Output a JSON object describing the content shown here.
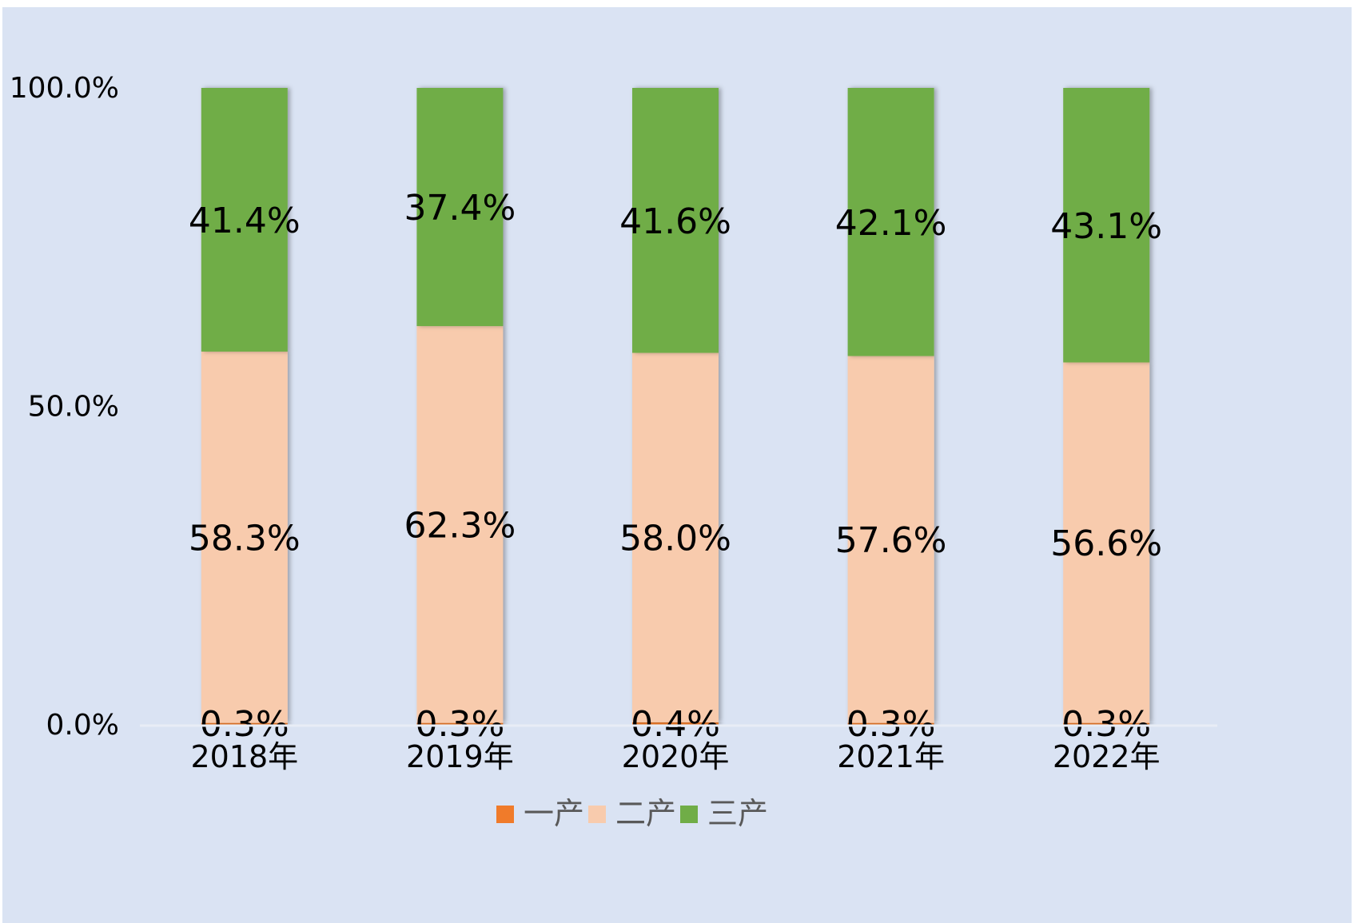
{
  "chart_data": {
    "type": "bar",
    "stacked": true,
    "categories": [
      "2018年",
      "2019年",
      "2020年",
      "2021年",
      "2022年"
    ],
    "series": [
      {
        "name": "一产",
        "values": [
          0.3,
          0.3,
          0.4,
          0.3,
          0.3
        ],
        "labels": [
          "0.3%",
          "0.3%",
          "0.4%",
          "0.3%",
          "0.3%"
        ],
        "color": "#f07b2a"
      },
      {
        "name": "二产",
        "values": [
          58.3,
          62.3,
          58.0,
          57.6,
          56.6
        ],
        "labels": [
          "58.3%",
          "62.3%",
          "58.0%",
          "57.6%",
          "56.6%"
        ],
        "color": "#f8cbad"
      },
      {
        "name": "三产",
        "values": [
          41.4,
          37.4,
          41.6,
          42.1,
          43.1
        ],
        "labels": [
          "41.4%",
          "37.4%",
          "41.6%",
          "42.1%",
          "43.1%"
        ],
        "color": "#70ad47"
      }
    ],
    "yaxis": {
      "ticks": [
        "0.0%",
        "50.0%",
        "100.0%"
      ],
      "tick_values": [
        0,
        50,
        100
      ],
      "ylim": [
        0,
        100
      ]
    },
    "grid": false,
    "legend_position": "bottom",
    "background": "#dae3f3"
  }
}
